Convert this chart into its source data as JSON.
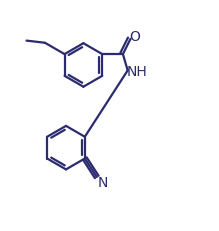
{
  "background_color": "#ffffff",
  "line_color": "#2b2b6e",
  "line_width": 1.6,
  "font_size": 9,
  "figsize": [
    2.19,
    2.32
  ],
  "dpi": 100,
  "xlim": [
    0.0,
    10.0
  ],
  "ylim": [
    0.0,
    10.6
  ]
}
